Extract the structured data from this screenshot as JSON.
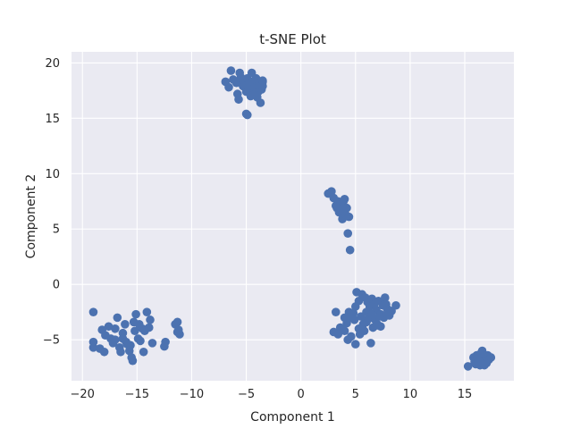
{
  "chart_data": {
    "type": "scatter",
    "title": "t-SNE Plot",
    "xlabel": "Component 1",
    "ylabel": "Component 2",
    "xlim": [
      -21,
      19.5
    ],
    "ylim": [
      -8.7,
      21
    ],
    "xticks": [
      -20,
      -15,
      -10,
      -5,
      0,
      5,
      10,
      15
    ],
    "yticks": [
      -5,
      0,
      5,
      10,
      15,
      20
    ],
    "grid": true,
    "colors": {
      "background": "#eaeaf2",
      "grid": "#ffffff",
      "marker": "#4c72b0",
      "text": "#262626"
    },
    "series": [
      {
        "points": [
          [
            -6.9,
            18.3
          ],
          [
            -6.6,
            17.8
          ],
          [
            -6.4,
            19.3
          ],
          [
            -6.2,
            18.5
          ],
          [
            -5.9,
            18.2
          ],
          [
            -5.8,
            17.2
          ],
          [
            -5.7,
            16.7
          ],
          [
            -5.6,
            19.1
          ],
          [
            -5.5,
            18.7
          ],
          [
            -5.3,
            17.9
          ],
          [
            -5.2,
            18.4
          ],
          [
            -5.0,
            17.4
          ],
          [
            -4.9,
            18.6
          ],
          [
            -4.8,
            17.6
          ],
          [
            -4.7,
            18.1
          ],
          [
            -4.6,
            17.0
          ],
          [
            -4.5,
            19.1
          ],
          [
            -4.4,
            18.3
          ],
          [
            -4.3,
            17.3
          ],
          [
            -4.2,
            17.8
          ],
          [
            -4.1,
            18.6
          ],
          [
            -4.0,
            16.9
          ],
          [
            -3.9,
            17.4
          ],
          [
            -3.8,
            18.1
          ],
          [
            -3.7,
            16.4
          ],
          [
            -3.6,
            17.6
          ],
          [
            -3.5,
            18.3
          ],
          [
            -3.5,
            17.9
          ],
          [
            -5.0,
            15.4
          ],
          [
            -4.9,
            15.3
          ],
          [
            -3.5,
            18.4
          ],
          [
            -4.4,
            17.1
          ],
          [
            2.5,
            8.2
          ],
          [
            2.8,
            8.4
          ],
          [
            3.0,
            7.8
          ],
          [
            3.2,
            7.1
          ],
          [
            3.4,
            7.5
          ],
          [
            3.5,
            6.5
          ],
          [
            3.6,
            7.2
          ],
          [
            3.7,
            6.8
          ],
          [
            3.8,
            5.9
          ],
          [
            3.9,
            7.5
          ],
          [
            4.0,
            7.7
          ],
          [
            4.1,
            6.3
          ],
          [
            4.2,
            6.9
          ],
          [
            4.4,
            6.1
          ],
          [
            4.3,
            4.6
          ],
          [
            4.5,
            3.1
          ],
          [
            3.9,
            6.6
          ],
          [
            3.3,
            6.9
          ],
          [
            5.1,
            -0.7
          ],
          [
            5.3,
            -1.5
          ],
          [
            5.6,
            -0.9
          ],
          [
            5.9,
            -1.2
          ],
          [
            6.1,
            -1.6
          ],
          [
            6.3,
            -2.0
          ],
          [
            6.5,
            -1.3
          ],
          [
            6.7,
            -1.8
          ],
          [
            6.9,
            -2.3
          ],
          [
            7.1,
            -1.5
          ],
          [
            7.3,
            -2.7
          ],
          [
            7.5,
            -1.9
          ],
          [
            7.7,
            -1.2
          ],
          [
            7.9,
            -2.2
          ],
          [
            8.1,
            -2.8
          ],
          [
            8.3,
            -2.4
          ],
          [
            8.7,
            -1.9
          ],
          [
            5.0,
            -2.0
          ],
          [
            4.8,
            -2.6
          ],
          [
            4.6,
            -3.0
          ],
          [
            4.4,
            -2.5
          ],
          [
            4.2,
            -3.5
          ],
          [
            4.0,
            -4.2
          ],
          [
            3.8,
            -4.0
          ],
          [
            3.6,
            -3.9
          ],
          [
            3.4,
            -4.5
          ],
          [
            3.2,
            -2.5
          ],
          [
            3.0,
            -4.3
          ],
          [
            4.3,
            -5.0
          ],
          [
            4.6,
            -4.7
          ],
          [
            5.0,
            -5.4
          ],
          [
            5.4,
            -4.5
          ],
          [
            5.7,
            -3.6
          ],
          [
            6.0,
            -3.4
          ],
          [
            6.2,
            -3.1
          ],
          [
            6.4,
            -5.3
          ],
          [
            6.6,
            -3.9
          ],
          [
            6.8,
            -3.2
          ],
          [
            7.0,
            -3.6
          ],
          [
            7.3,
            -3.8
          ],
          [
            7.6,
            -3.0
          ],
          [
            7.9,
            -2.7
          ],
          [
            5.5,
            -2.9
          ],
          [
            6.0,
            -2.5
          ],
          [
            6.5,
            -2.7
          ],
          [
            7.2,
            -2.9
          ],
          [
            4.0,
            -3.0
          ],
          [
            5.3,
            -4.0
          ],
          [
            7.8,
            -1.8
          ],
          [
            6.9,
            -3.7
          ],
          [
            5.8,
            -4.2
          ],
          [
            4.9,
            -3.2
          ],
          [
            -19.0,
            -2.5
          ],
          [
            -19.0,
            -5.2
          ],
          [
            -19.0,
            -5.7
          ],
          [
            -18.4,
            -5.8
          ],
          [
            -18.2,
            -4.1
          ],
          [
            -18.0,
            -6.1
          ],
          [
            -17.9,
            -4.6
          ],
          [
            -17.6,
            -3.8
          ],
          [
            -17.4,
            -4.9
          ],
          [
            -17.2,
            -5.3
          ],
          [
            -17.0,
            -4.0
          ],
          [
            -16.8,
            -3.0
          ],
          [
            -16.6,
            -5.7
          ],
          [
            -16.5,
            -6.1
          ],
          [
            -16.3,
            -4.4
          ],
          [
            -16.1,
            -3.6
          ],
          [
            -15.9,
            -5.4
          ],
          [
            -15.7,
            -6.0
          ],
          [
            -15.5,
            -6.6
          ],
          [
            -15.4,
            -6.9
          ],
          [
            -15.3,
            -3.4
          ],
          [
            -15.1,
            -2.7
          ],
          [
            -14.9,
            -4.9
          ],
          [
            -14.7,
            -5.1
          ],
          [
            -14.5,
            -4.0
          ],
          [
            -14.4,
            -6.1
          ],
          [
            -14.3,
            -4.2
          ],
          [
            -14.1,
            -2.5
          ],
          [
            -13.9,
            -3.9
          ],
          [
            -13.8,
            -3.2
          ],
          [
            -13.6,
            -5.3
          ],
          [
            -15.2,
            -4.2
          ],
          [
            -16.3,
            -4.9
          ],
          [
            -17.0,
            -5.0
          ],
          [
            -15.6,
            -5.5
          ],
          [
            -16.0,
            -5.2
          ],
          [
            -14.8,
            -3.6
          ],
          [
            -12.4,
            -5.2
          ],
          [
            -12.5,
            -5.6
          ],
          [
            -11.5,
            -3.6
          ],
          [
            -11.3,
            -3.4
          ],
          [
            -11.2,
            -4.1
          ],
          [
            -11.1,
            -4.5
          ],
          [
            -11.3,
            -4.3
          ],
          [
            15.3,
            -7.4
          ],
          [
            15.8,
            -6.6
          ],
          [
            15.9,
            -7.0
          ],
          [
            16.0,
            -7.2
          ],
          [
            16.1,
            -6.4
          ],
          [
            16.2,
            -7.0
          ],
          [
            16.3,
            -6.6
          ],
          [
            16.4,
            -7.3
          ],
          [
            16.5,
            -6.8
          ],
          [
            16.5,
            -6.2
          ],
          [
            16.6,
            -6.0
          ],
          [
            16.7,
            -7.2
          ],
          [
            16.8,
            -6.5
          ],
          [
            16.9,
            -6.9
          ],
          [
            17.0,
            -7.1
          ],
          [
            17.1,
            -6.4
          ],
          [
            17.2,
            -6.8
          ],
          [
            17.4,
            -6.6
          ],
          [
            16.3,
            -6.9
          ],
          [
            16.8,
            -7.3
          ]
        ]
      }
    ]
  }
}
